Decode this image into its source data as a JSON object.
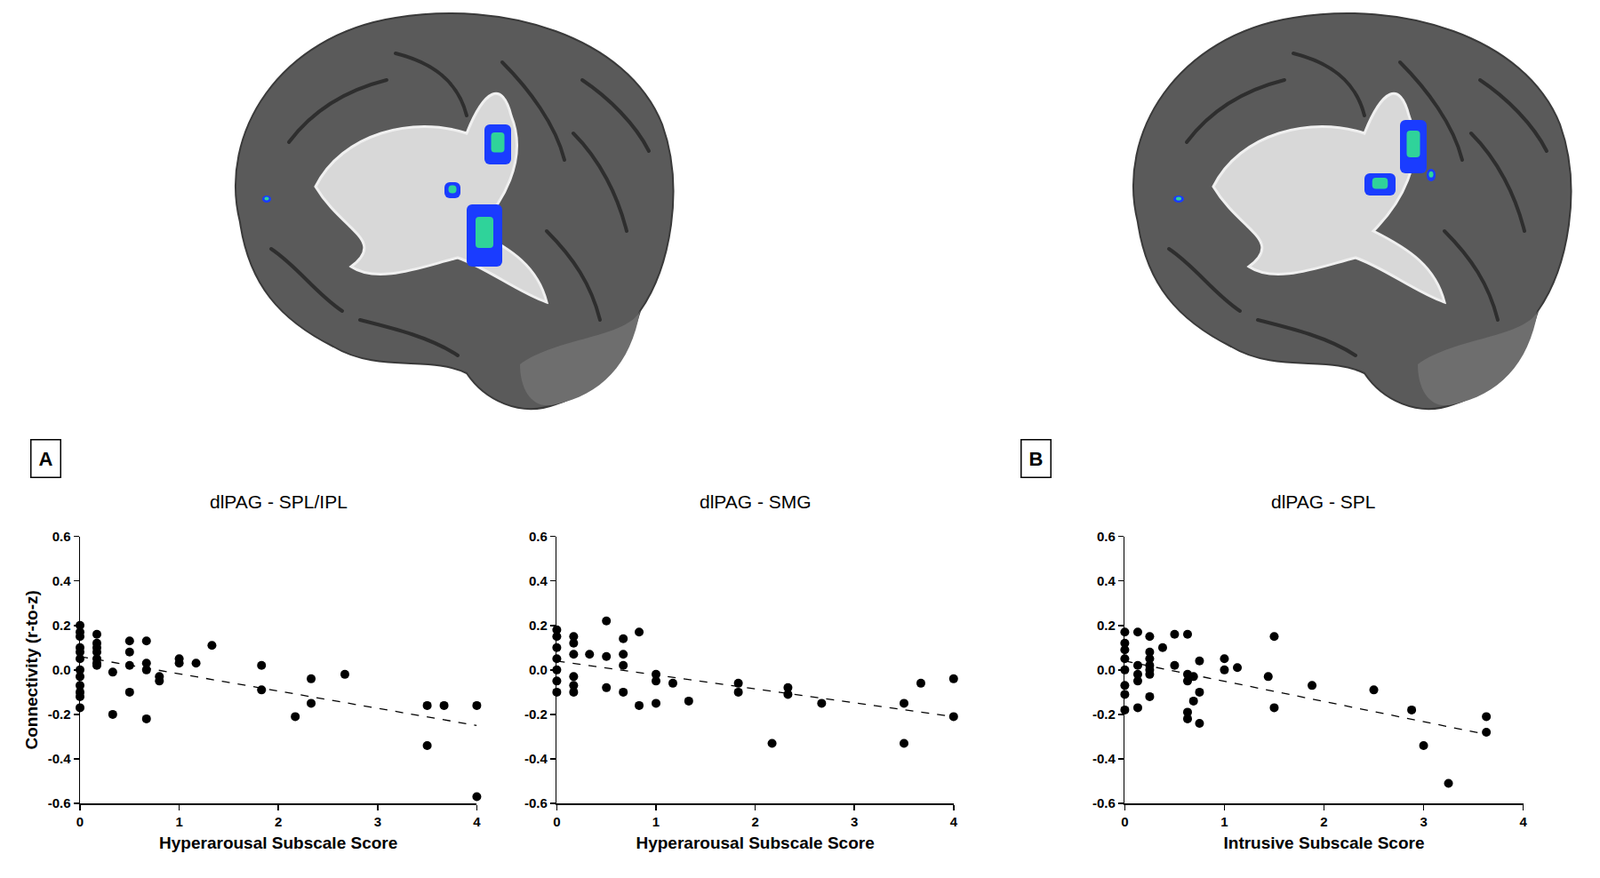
{
  "chart_data": [
    {
      "type": "scatter",
      "title": "dlPAG - SPL/IPL",
      "annotations": [
        "A"
      ],
      "x_label": "Hyperarousal Subscale Score",
      "y_label": "Connectivity (r-to-z)",
      "xlim": [
        0,
        4
      ],
      "xticks": [
        0,
        1,
        2,
        3,
        4
      ],
      "ylim": [
        -0.6,
        0.6
      ],
      "yticks": [
        -0.6,
        -0.4,
        -0.2,
        {
          "value": 0,
          "label": "0.0"
        },
        0.2,
        0.4,
        0.6
      ],
      "grid": false,
      "series": [
        {
          "type": "scatter",
          "marker": "circle",
          "color": "#000000",
          "x": [
            0,
            0,
            0,
            0,
            0,
            0,
            0,
            0,
            0,
            0,
            0,
            0,
            0.17,
            0.17,
            0.17,
            0.17,
            0.17,
            0.17,
            0.17,
            0.33,
            0.33,
            0.5,
            0.5,
            0.5,
            0.5,
            0.67,
            0.67,
            0.67,
            0.67,
            0.8,
            0.8,
            1,
            1,
            1.17,
            1.33,
            1.83,
            1.83,
            2.17,
            2.33,
            2.33,
            2.67,
            3.5,
            3.5,
            3.67,
            4,
            4
          ],
          "values": [
            0.2,
            0.17,
            0.15,
            0.1,
            0.08,
            0.05,
            0,
            -0.03,
            -0.07,
            -0.1,
            -0.12,
            -0.17,
            0.16,
            0.12,
            0.1,
            0.08,
            0.05,
            0.03,
            0.02,
            -0.01,
            -0.2,
            0.13,
            0.08,
            0.02,
            -0.1,
            0.13,
            0.03,
            0,
            -0.22,
            -0.03,
            -0.05,
            0.05,
            0.03,
            0.03,
            0.11,
            0.02,
            -0.09,
            -0.21,
            -0.04,
            -0.15,
            -0.02,
            -0.16,
            -0.34,
            -0.16,
            -0.16,
            -0.57
          ]
        },
        {
          "type": "line",
          "line_style": "dashed",
          "color": "#000000",
          "x": [
            0,
            4
          ],
          "values": [
            0.06,
            -0.25
          ]
        }
      ]
    },
    {
      "type": "scatter",
      "title": "dlPAG - SMG",
      "x_label": "Hyperarousal Subscale Score",
      "xlim": [
        0,
        4
      ],
      "xticks": [
        0,
        1,
        2,
        3,
        4
      ],
      "ylim": [
        -0.6,
        0.6
      ],
      "yticks": [
        -0.6,
        -0.4,
        -0.2,
        {
          "value": 0,
          "label": "0.0"
        },
        0.2,
        0.4,
        0.6
      ],
      "grid": false,
      "series": [
        {
          "type": "scatter",
          "marker": "circle",
          "color": "#000000",
          "x": [
            0,
            0,
            0,
            0,
            0,
            0,
            0,
            0.17,
            0.17,
            0.17,
            0.17,
            0.17,
            0.17,
            0.33,
            0.5,
            0.5,
            0.5,
            0.67,
            0.67,
            0.67,
            0.67,
            0.83,
            0.83,
            1,
            1,
            1,
            1.17,
            1.33,
            1.83,
            1.83,
            2.17,
            2.33,
            2.33,
            2.67,
            3.5,
            3.5,
            3.67,
            4,
            4
          ],
          "values": [
            0.18,
            0.15,
            0.1,
            0.05,
            0,
            -0.05,
            -0.1,
            0.15,
            0.12,
            0.07,
            -0.03,
            -0.07,
            -0.1,
            0.07,
            0.22,
            0.06,
            -0.08,
            0.14,
            0.07,
            0.02,
            -0.1,
            0.17,
            -0.16,
            -0.02,
            -0.05,
            -0.15,
            -0.06,
            -0.14,
            -0.06,
            -0.1,
            -0.33,
            -0.08,
            -0.11,
            -0.15,
            -0.15,
            -0.33,
            -0.06,
            -0.04,
            -0.21
          ]
        },
        {
          "type": "line",
          "line_style": "dashed",
          "color": "#000000",
          "x": [
            0,
            4
          ],
          "values": [
            0.04,
            -0.21
          ]
        }
      ]
    },
    {
      "type": "scatter",
      "title": "dlPAG - SPL",
      "annotations": [
        "B"
      ],
      "x_label": "Intrusive Subscale Score",
      "xlim": [
        0,
        4
      ],
      "xticks": [
        0,
        1,
        2,
        3,
        4
      ],
      "ylim": [
        -0.6,
        0.6
      ],
      "yticks": [
        -0.6,
        -0.4,
        -0.2,
        {
          "value": 0,
          "label": "0.0"
        },
        0.2,
        0.4,
        0.6
      ],
      "grid": false,
      "series": [
        {
          "type": "scatter",
          "marker": "circle",
          "color": "#000000",
          "x": [
            0,
            0,
            0,
            0,
            0,
            0,
            0,
            0,
            0.13,
            0.13,
            0.13,
            0.13,
            0.13,
            0.25,
            0.25,
            0.25,
            0.25,
            0.25,
            0.25,
            0.25,
            0.38,
            0.5,
            0.5,
            0.63,
            0.63,
            0.63,
            0.63,
            0.63,
            0.69,
            0.69,
            0.75,
            0.75,
            0.75,
            1,
            1,
            1.13,
            1.44,
            1.5,
            1.5,
            1.88,
            2.5,
            2.88,
            3,
            3.25,
            3.63,
            3.63
          ],
          "values": [
            0.17,
            0.12,
            0.09,
            0.05,
            0,
            -0.07,
            -0.11,
            -0.18,
            0.17,
            0.02,
            -0.02,
            -0.05,
            -0.17,
            0.15,
            0.08,
            0.05,
            0.02,
            0,
            -0.02,
            -0.12,
            0.1,
            0.16,
            0.02,
            0.16,
            -0.02,
            -0.05,
            -0.19,
            -0.22,
            -0.14,
            -0.03,
            0.04,
            -0.1,
            -0.24,
            0.05,
            0,
            0.01,
            -0.03,
            0.15,
            -0.17,
            -0.07,
            -0.09,
            -0.18,
            -0.34,
            -0.51,
            -0.21,
            -0.28
          ]
        },
        {
          "type": "line",
          "line_style": "dashed",
          "color": "#000000",
          "x": [
            0,
            3.63
          ],
          "values": [
            0.04,
            -0.29
          ]
        }
      ]
    }
  ]
}
